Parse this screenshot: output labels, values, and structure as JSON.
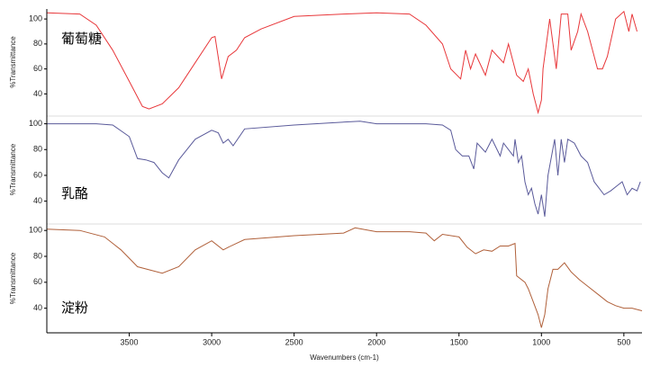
{
  "chart_data": [
    {
      "type": "line",
      "label": "葡萄糖",
      "ylabel": "%Transmittance",
      "color": "#e8373a",
      "xlim": [
        4000,
        390
      ],
      "ylim": [
        23,
        108
      ],
      "yticks": [
        40,
        60,
        80,
        100
      ],
      "x": [
        4000,
        3800,
        3700,
        3600,
        3500,
        3420,
        3380,
        3300,
        3200,
        3100,
        3000,
        2980,
        2940,
        2900,
        2850,
        2800,
        2700,
        2500,
        2200,
        2000,
        1800,
        1700,
        1600,
        1550,
        1490,
        1460,
        1430,
        1400,
        1340,
        1300,
        1230,
        1200,
        1150,
        1110,
        1080,
        1050,
        1020,
        1000,
        990,
        950,
        910,
        880,
        840,
        820,
        780,
        760,
        720,
        660,
        630,
        600,
        550,
        500,
        470,
        450,
        420
      ],
      "values": [
        105,
        104,
        95,
        75,
        50,
        30,
        28,
        32,
        45,
        65,
        85,
        86,
        52,
        70,
        75,
        85,
        92,
        102,
        104,
        105,
        104,
        95,
        80,
        60,
        52,
        75,
        60,
        72,
        55,
        75,
        65,
        80,
        55,
        50,
        60,
        40,
        25,
        35,
        60,
        100,
        60,
        104,
        104,
        75,
        90,
        104,
        90,
        60,
        60,
        70,
        100,
        106,
        90,
        104,
        90
      ]
    },
    {
      "type": "line",
      "label": "乳酪",
      "ylabel": "%Transmittance",
      "color": "#5a5a9a",
      "xlim": [
        4000,
        390
      ],
      "ylim": [
        23,
        106
      ],
      "yticks": [
        40,
        60,
        80,
        100
      ],
      "x": [
        4000,
        3700,
        3600,
        3500,
        3450,
        3400,
        3350,
        3300,
        3260,
        3200,
        3100,
        3000,
        2960,
        2930,
        2900,
        2870,
        2800,
        2500,
        2100,
        2000,
        1700,
        1600,
        1550,
        1520,
        1480,
        1440,
        1410,
        1390,
        1340,
        1300,
        1250,
        1230,
        1170,
        1160,
        1140,
        1120,
        1100,
        1080,
        1060,
        1040,
        1020,
        1000,
        980,
        960,
        920,
        900,
        880,
        860,
        840,
        800,
        760,
        720,
        680,
        620,
        580,
        540,
        510,
        480,
        450,
        420,
        400
      ],
      "values": [
        100,
        100,
        99,
        90,
        73,
        72,
        70,
        62,
        58,
        72,
        88,
        95,
        93,
        85,
        88,
        83,
        96,
        99,
        102,
        100,
        100,
        99,
        95,
        80,
        75,
        75,
        65,
        85,
        78,
        88,
        75,
        85,
        75,
        88,
        70,
        75,
        55,
        45,
        50,
        38,
        30,
        45,
        28,
        60,
        88,
        60,
        88,
        70,
        88,
        85,
        75,
        70,
        55,
        45,
        48,
        52,
        55,
        45,
        50,
        48,
        55
      ]
    },
    {
      "type": "line",
      "label": "淀粉",
      "ylabel": "%Transmittance",
      "color": "#b0603a",
      "xlim": [
        4000,
        390
      ],
      "ylim": [
        21,
        105
      ],
      "yticks": [
        40,
        60,
        80,
        100
      ],
      "xticks": [
        3500,
        3000,
        2500,
        2000,
        1500,
        1000,
        500
      ],
      "xlabel": "Wavenumbers (cm-1)",
      "x": [
        4000,
        3800,
        3650,
        3550,
        3450,
        3300,
        3200,
        3100,
        3000,
        2930,
        2900,
        2800,
        2500,
        2200,
        2130,
        2000,
        1800,
        1700,
        1650,
        1600,
        1500,
        1450,
        1400,
        1350,
        1300,
        1250,
        1200,
        1160,
        1150,
        1100,
        1080,
        1050,
        1020,
        1000,
        980,
        960,
        930,
        900,
        860,
        820,
        770,
        720,
        650,
        600,
        550,
        500,
        450,
        390
      ],
      "values": [
        101,
        100,
        95,
        85,
        72,
        67,
        72,
        85,
        92,
        85,
        87,
        93,
        96,
        98,
        102,
        99,
        99,
        98,
        92,
        97,
        95,
        87,
        82,
        85,
        84,
        88,
        88,
        90,
        65,
        60,
        55,
        45,
        35,
        25,
        35,
        55,
        70,
        70,
        75,
        68,
        62,
        57,
        50,
        45,
        42,
        40,
        40,
        38
      ]
    }
  ]
}
